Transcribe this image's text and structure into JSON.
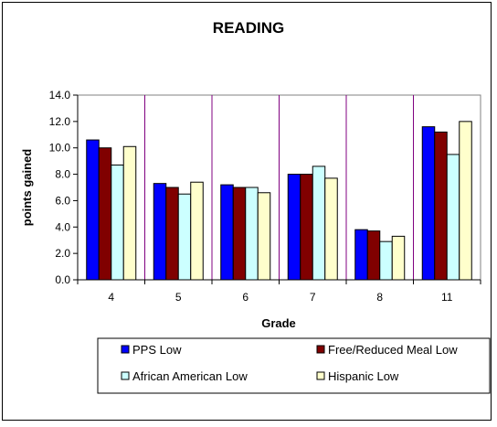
{
  "chart_data": {
    "type": "bar",
    "title": "READING",
    "xlabel": "Grade",
    "ylabel": "points gained",
    "categories": [
      "4",
      "5",
      "6",
      "7",
      "8",
      "11"
    ],
    "ylim": [
      0,
      14
    ],
    "yticks": [
      "0.0",
      "2.0",
      "4.0",
      "6.0",
      "8.0",
      "10.0",
      "12.0",
      "14.0"
    ],
    "legend_position": "bottom",
    "series": [
      {
        "name": "PPS Low",
        "color": "#0000ff",
        "values": [
          10.6,
          7.3,
          7.2,
          8.0,
          3.8,
          11.6
        ]
      },
      {
        "name": "Free/Reduced Meal Low",
        "color": "#800000",
        "values": [
          10.0,
          7.0,
          7.0,
          8.0,
          3.7,
          11.2
        ]
      },
      {
        "name": "African American Low",
        "color": "#ccffff",
        "values": [
          8.7,
          6.5,
          7.0,
          8.6,
          2.9,
          9.5
        ]
      },
      {
        "name": "Hispanic Low",
        "color": "#ffffcc",
        "values": [
          10.1,
          7.4,
          6.6,
          7.7,
          3.3,
          12.0
        ]
      }
    ],
    "grid": true
  }
}
